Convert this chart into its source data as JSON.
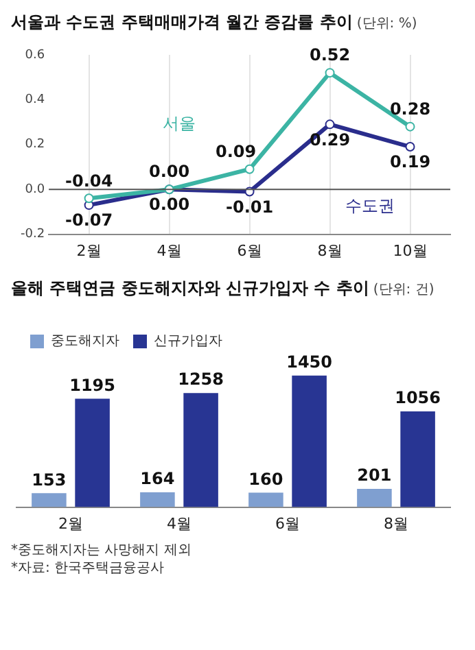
{
  "chart_data": [
    {
      "type": "line",
      "title": "서울과 수도권 주택매매가격 월간 증감률 추이",
      "subtitle": "(단위: %)",
      "categories": [
        "2월",
        "4월",
        "6월",
        "8월",
        "10월"
      ],
      "series": [
        {
          "name": "서울",
          "color": "#3cb4a4",
          "values": [
            -0.04,
            0.0,
            0.09,
            0.52,
            0.28
          ],
          "value_labels": [
            "-0.04",
            "0.00",
            "0.09",
            "0.52",
            "0.28"
          ]
        },
        {
          "name": "수도권",
          "color": "#2a2d8c",
          "values": [
            -0.07,
            0.0,
            -0.01,
            0.29,
            0.19
          ],
          "value_labels": [
            "-0.07",
            "0.00",
            "-0.01",
            "0.29",
            "0.19"
          ]
        }
      ],
      "ylim": [
        -0.2,
        0.6
      ],
      "yticks": [
        {
          "value": -0.2,
          "label": "-0.2"
        },
        {
          "value": 0,
          "label": "0.0"
        },
        {
          "value": 0.2,
          "label": "0.2"
        },
        {
          "value": 0.4,
          "label": "0.4"
        },
        {
          "value": 0.6,
          "label": "0.6"
        }
      ],
      "grid": "x",
      "marker": "circle",
      "ref_lines": [
        {
          "axis": "y",
          "value": 0
        }
      ]
    },
    {
      "type": "bar",
      "title": "올해 주택연금 중도해지자와 신규가입자 수 추이",
      "subtitle": "(단위: 건)",
      "categories": [
        "2월",
        "4월",
        "6월",
        "8월"
      ],
      "series": [
        {
          "name": "중도해지자",
          "color": "#7f9fd0",
          "values": [
            153,
            164,
            160,
            201
          ]
        },
        {
          "name": "신규가입자",
          "color": "#283593",
          "values": [
            1195,
            1258,
            1450,
            1056
          ]
        }
      ],
      "tick_labels": "x",
      "data_labels": true,
      "legend": "top left",
      "annotations": [
        "*중도해지자는 사망해지 제외",
        "*자료: 한국주택금융공사"
      ]
    }
  ]
}
